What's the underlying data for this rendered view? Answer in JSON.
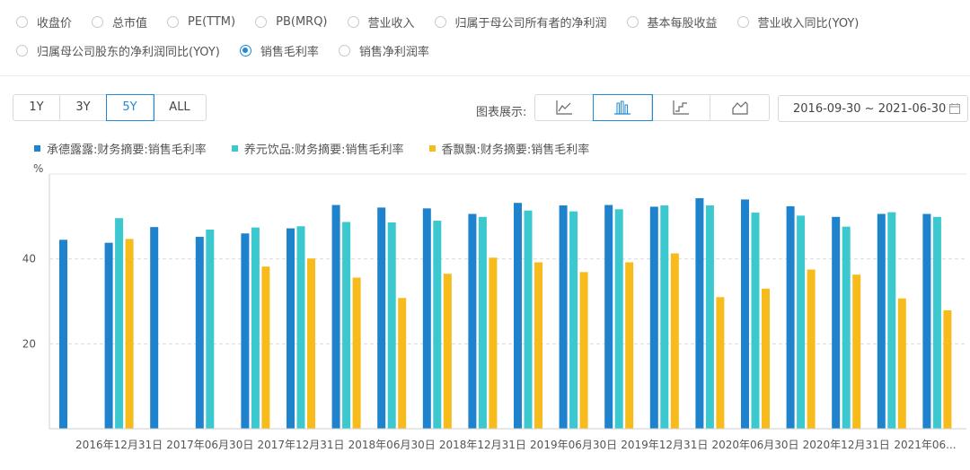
{
  "metrics": {
    "row1": [
      {
        "label": "收盘价",
        "checked": false
      },
      {
        "label": "总市值",
        "checked": false
      },
      {
        "label": "PE(TTM)",
        "checked": false
      },
      {
        "label": "PB(MRQ)",
        "checked": false
      },
      {
        "label": "营业收入",
        "checked": false
      },
      {
        "label": "归属于母公司所有者的净利润",
        "checked": false
      },
      {
        "label": "基本每股收益",
        "checked": false
      },
      {
        "label": "营业收入同比(YOY)",
        "checked": false
      }
    ],
    "row2": [
      {
        "label": "归属母公司股东的净利润同比(YOY)",
        "checked": false
      },
      {
        "label": "销售毛利率",
        "checked": true
      },
      {
        "label": "销售净利润率",
        "checked": false
      }
    ]
  },
  "range_buttons": [
    "1Y",
    "3Y",
    "5Y",
    "ALL"
  ],
  "range_active": "5Y",
  "chart_type_label": "图表展示:",
  "chart_types": [
    "line-chart-icon",
    "bar-chart-icon",
    "step-chart-icon",
    "area-chart-icon"
  ],
  "chart_type_active": "bar-chart-icon",
  "date_range": "2016-09-30 ~ 2021-06-30",
  "colors": {
    "accent": "#1f8ad6",
    "series1": "#1f82cc",
    "series2": "#3cc8cf",
    "series3": "#f7bc1c"
  },
  "chart_data": {
    "type": "bar",
    "ylabel": "%",
    "ylim": [
      0,
      60
    ],
    "yticks": [
      20,
      40
    ],
    "grid": true,
    "legend_position": "top-left",
    "categories": [
      "2016-09-30",
      "2016-12-31",
      "2017-03-31",
      "2017-06-30",
      "2017-09-30",
      "2017-12-31",
      "2018-03-31",
      "2018-06-30",
      "2018-09-30",
      "2018-12-31",
      "2019-03-31",
      "2019-06-30",
      "2019-09-30",
      "2019-12-31",
      "2020-03-31",
      "2020-06-30",
      "2020-09-30",
      "2020-12-31",
      "2021-03-31",
      "2021-06-30"
    ],
    "tick_labels": [
      "2016年12月31日",
      "2017年06月30日",
      "2017年12月31日",
      "2018年06月30日",
      "2018年12月31日",
      "2019年06月30日",
      "2019年12月31日",
      "2020年06月30日",
      "2020年12月31日",
      "2021年06..."
    ],
    "series": [
      {
        "name": "承德露露:财务摘要:销售毛利率",
        "values": [
          44.5,
          43.8,
          47.5,
          45.2,
          46.0,
          47.2,
          52.7,
          52.1,
          51.9,
          50.6,
          53.2,
          52.6,
          52.7,
          52.3,
          54.3,
          54.0,
          52.4,
          49.9,
          50.6,
          50.6
        ]
      },
      {
        "name": "养元饮品:财务摘要:销售毛利率",
        "values": [
          null,
          49.6,
          null,
          46.9,
          47.4,
          47.7,
          48.7,
          48.6,
          49.0,
          49.9,
          51.4,
          51.2,
          51.7,
          52.6,
          52.6,
          50.9,
          50.2,
          47.6,
          51.0,
          49.9
        ]
      },
      {
        "name": "香飘飘:财务摘要:销售毛利率",
        "values": [
          null,
          44.7,
          null,
          null,
          38.2,
          40.1,
          35.6,
          30.8,
          36.5,
          40.3,
          39.2,
          36.9,
          39.2,
          41.3,
          31.0,
          33.0,
          37.5,
          36.3,
          30.7,
          27.9
        ]
      }
    ]
  }
}
